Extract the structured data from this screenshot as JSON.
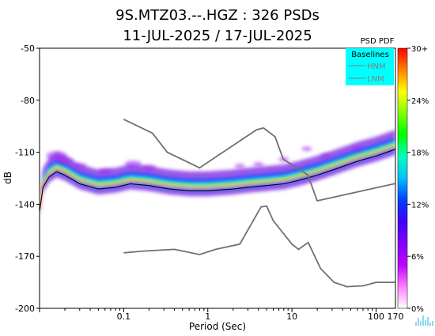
{
  "chart_data": {
    "type": "heatmap",
    "title_line1": "9S.MTZ03.--.HGZ : 326 PSDs",
    "title_line2": "11-JUL-2025 / 17-JUL-2025",
    "xlabel": "Period (Sec)",
    "ylabel": "dB",
    "x_scale": "log",
    "xlim": [
      0.01,
      170
    ],
    "ylim": [
      -200,
      -50
    ],
    "x_ticks": [
      {
        "value": 0.1,
        "label": "0.1"
      },
      {
        "value": 1,
        "label": "1"
      },
      {
        "value": 10,
        "label": "10"
      },
      {
        "value": 100,
        "label": "100"
      },
      {
        "value": 170,
        "label": "170"
      }
    ],
    "y_ticks": [
      -50,
      -80,
      -110,
      -140,
      -170,
      -200
    ],
    "colorbar": {
      "title": "PSD PDF",
      "ticks": [
        "30+",
        "24%",
        "18%",
        "12%",
        "6%",
        "0%"
      ],
      "colors": [
        "#ff0000",
        "#ff8000",
        "#ffff00",
        "#80ff00",
        "#00ff00",
        "#00ffbf",
        "#00bfff",
        "#0040ff",
        "#4000ff",
        "#8000ff",
        "#c000ff",
        "#ff80ff",
        "#ffffff"
      ]
    },
    "legend": {
      "title": "Baselines",
      "items": [
        "HNM",
        "LNM"
      ],
      "placement": "top-right",
      "background": "#00ffff"
    },
    "baselines": {
      "HNM": [
        {
          "x": 0.1,
          "y": -91
        },
        {
          "x": 0.22,
          "y": -99
        },
        {
          "x": 0.33,
          "y": -110
        },
        {
          "x": 0.8,
          "y": -119
        },
        {
          "x": 3.8,
          "y": -97
        },
        {
          "x": 4.6,
          "y": -96
        },
        {
          "x": 6.3,
          "y": -101
        },
        {
          "x": 7.9,
          "y": -114
        },
        {
          "x": 15.4,
          "y": -123
        },
        {
          "x": 20,
          "y": -138
        },
        {
          "x": 170,
          "y": -128
        }
      ],
      "LNM": [
        {
          "x": 0.1,
          "y": -168
        },
        {
          "x": 0.17,
          "y": -167
        },
        {
          "x": 0.4,
          "y": -166
        },
        {
          "x": 0.8,
          "y": -169
        },
        {
          "x": 1.24,
          "y": -166
        },
        {
          "x": 2.4,
          "y": -163
        },
        {
          "x": 4.3,
          "y": -141.5
        },
        {
          "x": 5,
          "y": -141
        },
        {
          "x": 6,
          "y": -149.5
        },
        {
          "x": 10,
          "y": -163
        },
        {
          "x": 12,
          "y": -166
        },
        {
          "x": 15.6,
          "y": -162
        },
        {
          "x": 21.9,
          "y": -177
        },
        {
          "x": 31.6,
          "y": -185
        },
        {
          "x": 45,
          "y": -187.5
        },
        {
          "x": 70.8,
          "y": -187
        },
        {
          "x": 100,
          "y": -185
        },
        {
          "x": 170,
          "y": -185
        }
      ]
    },
    "psd_mode": [
      {
        "x": 0.01,
        "y": -142
      },
      {
        "x": 0.011,
        "y": -128
      },
      {
        "x": 0.013,
        "y": -122
      },
      {
        "x": 0.016,
        "y": -119
      },
      {
        "x": 0.02,
        "y": -121
      },
      {
        "x": 0.03,
        "y": -126
      },
      {
        "x": 0.05,
        "y": -129
      },
      {
        "x": 0.08,
        "y": -128
      },
      {
        "x": 0.12,
        "y": -126
      },
      {
        "x": 0.2,
        "y": -127
      },
      {
        "x": 0.35,
        "y": -129
      },
      {
        "x": 0.6,
        "y": -130
      },
      {
        "x": 1,
        "y": -130
      },
      {
        "x": 2,
        "y": -129
      },
      {
        "x": 3,
        "y": -128
      },
      {
        "x": 5,
        "y": -127
      },
      {
        "x": 8,
        "y": -126
      },
      {
        "x": 12,
        "y": -124
      },
      {
        "x": 20,
        "y": -121
      },
      {
        "x": 35,
        "y": -117
      },
      {
        "x": 60,
        "y": -113
      },
      {
        "x": 100,
        "y": -110
      },
      {
        "x": 150,
        "y": -107
      },
      {
        "x": 170,
        "y": -106
      }
    ]
  }
}
